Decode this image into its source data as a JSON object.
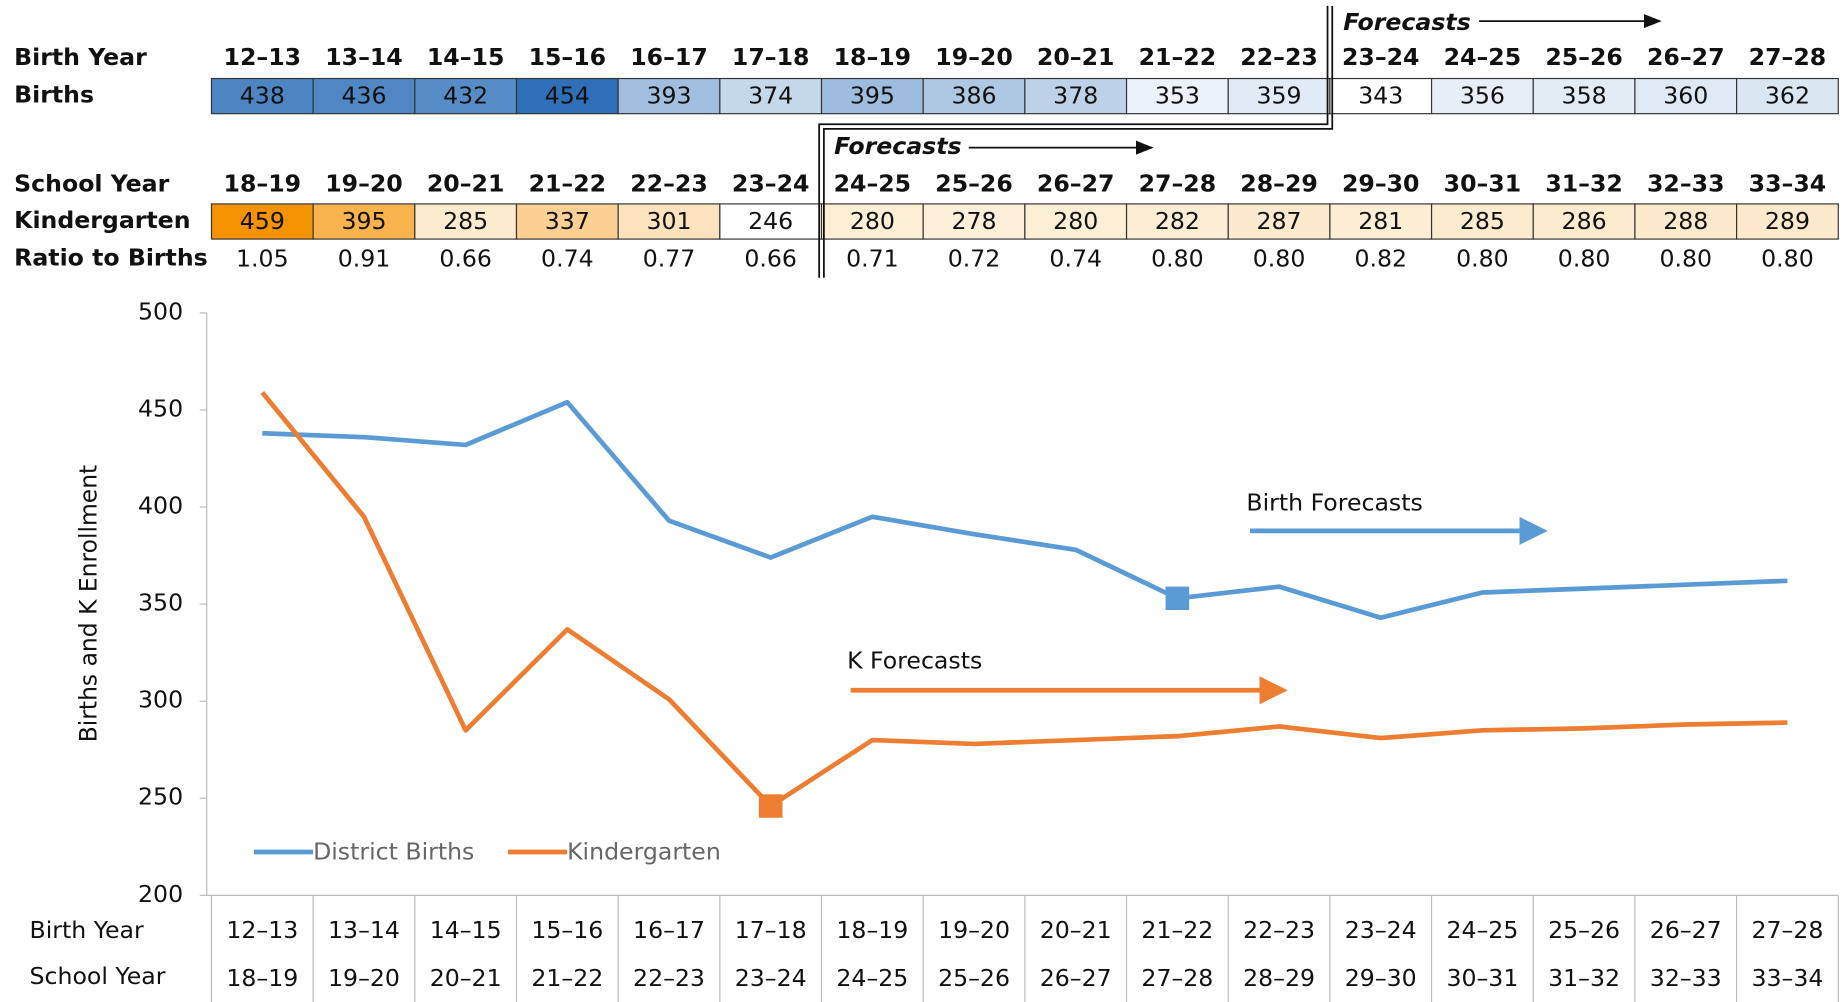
{
  "chart_data": {
    "type": "line",
    "y_label": "Births and K Enrollment",
    "categories": [
      "12–13",
      "13–14",
      "14–15",
      "15–16",
      "16–17",
      "17–18",
      "18–19",
      "19–20",
      "20–21",
      "21–22",
      "22–23",
      "23–24",
      "24–25",
      "25–26",
      "26–27",
      "27–28"
    ],
    "school_years": [
      "18–19",
      "19–20",
      "20–21",
      "21–22",
      "22–23",
      "23–24",
      "24–25",
      "25–26",
      "26–27",
      "27–28",
      "28–29",
      "29–30",
      "30–31",
      "31–32",
      "32–33",
      "33–34"
    ],
    "series": [
      {
        "name": "District Births",
        "color": "#5b9bd5",
        "table_label": "Births",
        "values": [
          438,
          436,
          432,
          454,
          393,
          374,
          395,
          386,
          378,
          353,
          359,
          343,
          356,
          358,
          360,
          362
        ],
        "marker": 9,
        "forecast_from": 11
      },
      {
        "name": "Kindergarten",
        "color": "#ed7d31",
        "table_label": "Kindergarten",
        "values": [
          459,
          395,
          285,
          337,
          301,
          246,
          280,
          278,
          280,
          282,
          287,
          281,
          285,
          286,
          288,
          289
        ],
        "marker": 5,
        "forecast_from": 6
      }
    ],
    "birth_year_label": "Birth Year",
    "school_year_label": "School Year",
    "ratio_label": "Ratio to Births",
    "ratios": [
      "1.05",
      "0.91",
      "0.66",
      "0.74",
      "0.77",
      "0.66",
      "0.71",
      "0.72",
      "0.74",
      "0.80",
      "0.80",
      "0.82",
      "0.80",
      "0.80",
      "0.80",
      "0.80"
    ],
    "forecast_label": "Forecasts",
    "annotations": [
      "Birth Forecasts",
      "K Forecasts"
    ],
    "ylim": [
      200,
      500
    ],
    "yticks": [
      200,
      250,
      300,
      350,
      400,
      450,
      500
    ]
  }
}
